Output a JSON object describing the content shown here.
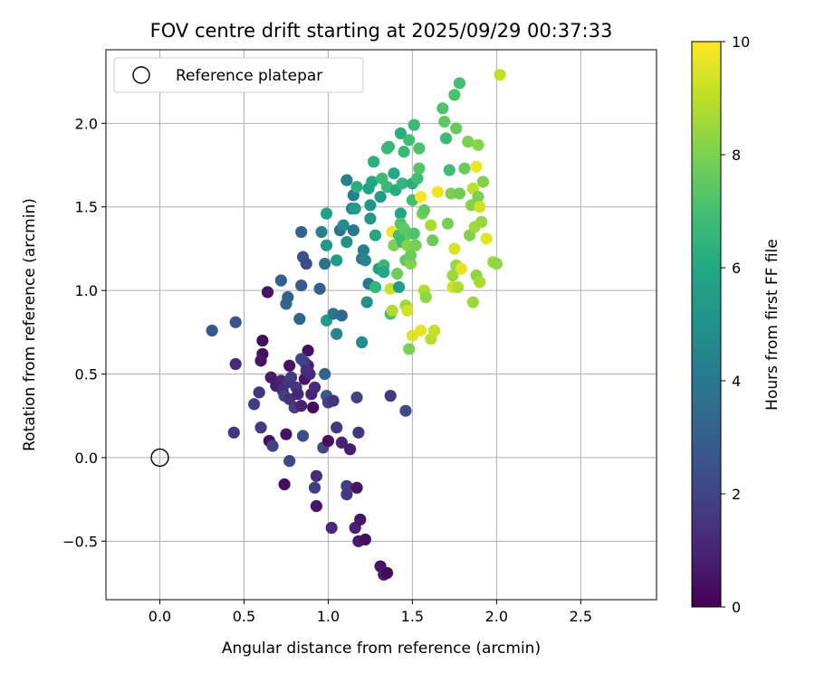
{
  "chart_data": {
    "type": "scatter",
    "title": "FOV centre drift starting at 2025/09/29 00:37:33",
    "xlabel": "Angular distance from reference (arcmin)",
    "ylabel": "Rotation from reference (arcmin)",
    "xlim": [
      -0.32,
      2.95
    ],
    "ylim": [
      -0.85,
      2.44
    ],
    "xticks": [
      "0.0",
      "0.5",
      "1.0",
      "1.5",
      "2.0",
      "2.5"
    ],
    "xtick_values": [
      0.0,
      0.5,
      1.0,
      1.5,
      2.0,
      2.5
    ],
    "yticks": [
      "−0.5",
      "0.0",
      "0.5",
      "1.0",
      "1.5",
      "2.0"
    ],
    "ytick_values": [
      -0.5,
      0.0,
      0.5,
      1.0,
      1.5,
      2.0
    ],
    "grid": true,
    "legend": {
      "placement": "top-left",
      "entries": [
        "Reference platepar"
      ]
    },
    "reference_point": {
      "x": 0.0,
      "y": 0.0,
      "label": "Reference platepar"
    },
    "colorbar": {
      "label": "Hours from first FF file",
      "range": [
        0,
        10
      ],
      "ticks": [
        "0",
        "2",
        "4",
        "6",
        "8",
        "10"
      ],
      "tick_values": [
        0,
        2,
        4,
        6,
        8,
        10
      ],
      "colormap": "viridis"
    },
    "points": [
      {
        "x": 0.64,
        "y": 0.99,
        "t": 0.5
      },
      {
        "x": 0.61,
        "y": 0.7,
        "t": 0.3
      },
      {
        "x": 0.61,
        "y": 0.62,
        "t": 0.4
      },
      {
        "x": 0.6,
        "y": 0.58,
        "t": 0.5
      },
      {
        "x": 0.45,
        "y": 0.56,
        "t": 1.2
      },
      {
        "x": 0.66,
        "y": 0.48,
        "t": 0.7
      },
      {
        "x": 0.69,
        "y": 0.43,
        "t": 0.8
      },
      {
        "x": 0.72,
        "y": 0.46,
        "t": 1.0
      },
      {
        "x": 0.73,
        "y": 0.4,
        "t": 1.3
      },
      {
        "x": 0.76,
        "y": 0.45,
        "t": 1.5
      },
      {
        "x": 0.78,
        "y": 0.48,
        "t": 1.7
      },
      {
        "x": 0.81,
        "y": 0.42,
        "t": 1.6
      },
      {
        "x": 0.74,
        "y": 0.37,
        "t": 1.9
      },
      {
        "x": 0.77,
        "y": 0.35,
        "t": 1.4
      },
      {
        "x": 0.8,
        "y": 0.3,
        "t": 1.8
      },
      {
        "x": 0.82,
        "y": 0.38,
        "t": 1.1
      },
      {
        "x": 0.84,
        "y": 0.31,
        "t": 0.9
      },
      {
        "x": 0.86,
        "y": 0.47,
        "t": 0.6
      },
      {
        "x": 0.88,
        "y": 0.55,
        "t": 0.7
      },
      {
        "x": 0.89,
        "y": 0.5,
        "t": 1.1
      },
      {
        "x": 0.88,
        "y": 0.64,
        "t": 0.4
      },
      {
        "x": 0.86,
        "y": 0.57,
        "t": 1.5
      },
      {
        "x": 0.84,
        "y": 0.59,
        "t": 2.0
      },
      {
        "x": 0.87,
        "y": 0.52,
        "t": 1.3
      },
      {
        "x": 0.9,
        "y": 0.38,
        "t": 1.0
      },
      {
        "x": 0.92,
        "y": 0.42,
        "t": 1.2
      },
      {
        "x": 0.91,
        "y": 0.3,
        "t": 0.3
      },
      {
        "x": 0.98,
        "y": 0.5,
        "t": 3.2
      },
      {
        "x": 0.99,
        "y": 0.37,
        "t": 2.8
      },
      {
        "x": 1.0,
        "y": 0.33,
        "t": 1.9
      },
      {
        "x": 1.03,
        "y": 0.34,
        "t": 1.4
      },
      {
        "x": 0.77,
        "y": 0.55,
        "t": 0.5
      },
      {
        "x": 0.56,
        "y": 0.32,
        "t": 1.8
      },
      {
        "x": 0.59,
        "y": 0.39,
        "t": 1.6
      },
      {
        "x": 0.44,
        "y": 0.15,
        "t": 1.5
      },
      {
        "x": 0.6,
        "y": 0.18,
        "t": 1.7
      },
      {
        "x": 0.65,
        "y": 0.1,
        "t": 0.4
      },
      {
        "x": 0.67,
        "y": 0.07,
        "t": 1.9
      },
      {
        "x": 0.75,
        "y": 0.14,
        "t": 0.5
      },
      {
        "x": 0.77,
        "y": -0.02,
        "t": 2.2
      },
      {
        "x": 0.74,
        "y": -0.16,
        "t": 0.3
      },
      {
        "x": 0.85,
        "y": 0.13,
        "t": 2.4
      },
      {
        "x": 0.97,
        "y": 0.06,
        "t": 2.2
      },
      {
        "x": 1.0,
        "y": 0.1,
        "t": 0.4
      },
      {
        "x": 1.05,
        "y": 0.18,
        "t": 1.6
      },
      {
        "x": 1.08,
        "y": 0.09,
        "t": 1.0
      },
      {
        "x": 1.13,
        "y": 0.05,
        "t": 0.8
      },
      {
        "x": 1.18,
        "y": 0.15,
        "t": 1.5
      },
      {
        "x": 1.17,
        "y": 0.36,
        "t": 1.9
      },
      {
        "x": 1.37,
        "y": 0.37,
        "t": 1.7
      },
      {
        "x": 1.46,
        "y": 0.28,
        "t": 2.3
      },
      {
        "x": 0.93,
        "y": -0.11,
        "t": 1.3
      },
      {
        "x": 0.92,
        "y": -0.18,
        "t": 1.8
      },
      {
        "x": 0.93,
        "y": -0.29,
        "t": 0.6
      },
      {
        "x": 1.11,
        "y": -0.17,
        "t": 1.8
      },
      {
        "x": 1.11,
        "y": -0.22,
        "t": 1.6
      },
      {
        "x": 1.17,
        "y": -0.18,
        "t": 0.5
      },
      {
        "x": 1.02,
        "y": -0.42,
        "t": 1.2
      },
      {
        "x": 1.16,
        "y": -0.42,
        "t": 0.9
      },
      {
        "x": 1.19,
        "y": -0.37,
        "t": 0.6
      },
      {
        "x": 1.18,
        "y": -0.5,
        "t": 0.7
      },
      {
        "x": 1.22,
        "y": -0.49,
        "t": 0.4
      },
      {
        "x": 1.31,
        "y": -0.65,
        "t": 0.5
      },
      {
        "x": 1.33,
        "y": -0.7,
        "t": 0.8
      },
      {
        "x": 1.35,
        "y": -0.69,
        "t": 0.3
      },
      {
        "x": 0.31,
        "y": 0.76,
        "t": 2.8
      },
      {
        "x": 0.45,
        "y": 0.81,
        "t": 2.5
      },
      {
        "x": 0.72,
        "y": 1.06,
        "t": 3.0
      },
      {
        "x": 0.75,
        "y": 0.92,
        "t": 3.3
      },
      {
        "x": 0.76,
        "y": 0.96,
        "t": 3.1
      },
      {
        "x": 0.84,
        "y": 1.03,
        "t": 2.9
      },
      {
        "x": 0.83,
        "y": 0.83,
        "t": 3.2
      },
      {
        "x": 0.85,
        "y": 1.2,
        "t": 2.6
      },
      {
        "x": 0.87,
        "y": 1.16,
        "t": 2.3
      },
      {
        "x": 0.84,
        "y": 1.35,
        "t": 3.1
      },
      {
        "x": 0.95,
        "y": 1.01,
        "t": 3.0
      },
      {
        "x": 0.98,
        "y": 1.16,
        "t": 3.8
      },
      {
        "x": 0.96,
        "y": 1.35,
        "t": 4.4
      },
      {
        "x": 0.99,
        "y": 1.27,
        "t": 5.3
      },
      {
        "x": 0.99,
        "y": 1.46,
        "t": 5.6
      },
      {
        "x": 0.99,
        "y": 0.82,
        "t": 5.5
      },
      {
        "x": 1.03,
        "y": 0.86,
        "t": 3.9
      },
      {
        "x": 1.05,
        "y": 0.74,
        "t": 4.5
      },
      {
        "x": 1.08,
        "y": 0.85,
        "t": 3.4
      },
      {
        "x": 1.05,
        "y": 1.18,
        "t": 5.4
      },
      {
        "x": 1.07,
        "y": 1.36,
        "t": 3.8
      },
      {
        "x": 1.09,
        "y": 1.39,
        "t": 4.9
      },
      {
        "x": 1.11,
        "y": 1.66,
        "t": 4.4
      },
      {
        "x": 1.11,
        "y": 1.29,
        "t": 5.0
      },
      {
        "x": 1.14,
        "y": 1.49,
        "t": 4.6
      },
      {
        "x": 1.15,
        "y": 1.57,
        "t": 4.2
      },
      {
        "x": 1.15,
        "y": 1.36,
        "t": 4.0
      },
      {
        "x": 1.16,
        "y": 1.49,
        "t": 5.5
      },
      {
        "x": 1.17,
        "y": 1.62,
        "t": 6.3
      },
      {
        "x": 1.2,
        "y": 1.19,
        "t": 3.7
      },
      {
        "x": 1.21,
        "y": 1.24,
        "t": 4.2
      },
      {
        "x": 1.2,
        "y": 0.69,
        "t": 4.8
      },
      {
        "x": 1.23,
        "y": 0.93,
        "t": 5.0
      },
      {
        "x": 1.22,
        "y": 1.18,
        "t": 4.5
      },
      {
        "x": 1.24,
        "y": 1.04,
        "t": 4.1
      },
      {
        "x": 1.24,
        "y": 1.61,
        "t": 5.7
      },
      {
        "x": 1.25,
        "y": 1.51,
        "t": 5.2
      },
      {
        "x": 1.25,
        "y": 1.43,
        "t": 5.3
      },
      {
        "x": 1.26,
        "y": 1.65,
        "t": 5.9
      },
      {
        "x": 1.27,
        "y": 1.77,
        "t": 6.3
      },
      {
        "x": 1.28,
        "y": 1.33,
        "t": 5.9
      },
      {
        "x": 1.28,
        "y": 1.02,
        "t": 6.5
      },
      {
        "x": 1.3,
        "y": 1.13,
        "t": 5.6
      },
      {
        "x": 1.31,
        "y": 1.56,
        "t": 5.4
      },
      {
        "x": 1.32,
        "y": 1.67,
        "t": 6.8
      },
      {
        "x": 1.33,
        "y": 1.15,
        "t": 6.6
      },
      {
        "x": 1.33,
        "y": 1.11,
        "t": 6.0
      },
      {
        "x": 1.35,
        "y": 1.62,
        "t": 6.7
      },
      {
        "x": 1.35,
        "y": 1.85,
        "t": 6.9
      },
      {
        "x": 1.36,
        "y": 1.86,
        "t": 6.6
      },
      {
        "x": 1.37,
        "y": 1.01,
        "t": 9.2
      },
      {
        "x": 1.37,
        "y": 0.86,
        "t": 7.0
      },
      {
        "x": 1.38,
        "y": 0.88,
        "t": 8.8
      },
      {
        "x": 1.38,
        "y": 1.35,
        "t": 9.8
      },
      {
        "x": 1.39,
        "y": 1.27,
        "t": 8.0
      },
      {
        "x": 1.39,
        "y": 1.7,
        "t": 6.0
      },
      {
        "x": 1.4,
        "y": 1.6,
        "t": 6.2
      },
      {
        "x": 1.41,
        "y": 1.1,
        "t": 7.8
      },
      {
        "x": 1.42,
        "y": 1.02,
        "t": 5.6
      },
      {
        "x": 1.42,
        "y": 1.33,
        "t": 6.9
      },
      {
        "x": 1.43,
        "y": 1.46,
        "t": 5.9
      },
      {
        "x": 1.43,
        "y": 1.4,
        "t": 7.3
      },
      {
        "x": 1.43,
        "y": 1.94,
        "t": 6.2
      },
      {
        "x": 1.44,
        "y": 1.29,
        "t": 6.8
      },
      {
        "x": 1.44,
        "y": 1.64,
        "t": 6.5
      },
      {
        "x": 1.45,
        "y": 1.83,
        "t": 6.7
      },
      {
        "x": 1.45,
        "y": 1.37,
        "t": 7.5
      },
      {
        "x": 1.46,
        "y": 1.18,
        "t": 7.6
      },
      {
        "x": 1.46,
        "y": 0.91,
        "t": 8.5
      },
      {
        "x": 1.47,
        "y": 0.88,
        "t": 9.3
      },
      {
        "x": 1.47,
        "y": 1.27,
        "t": 8.2
      },
      {
        "x": 1.48,
        "y": 1.34,
        "t": 7.4
      },
      {
        "x": 1.48,
        "y": 1.9,
        "t": 6.9
      },
      {
        "x": 1.48,
        "y": 0.65,
        "t": 8.0
      },
      {
        "x": 1.49,
        "y": 1.16,
        "t": 8.1
      },
      {
        "x": 1.49,
        "y": 1.21,
        "t": 7.7
      },
      {
        "x": 1.5,
        "y": 1.54,
        "t": 7.0
      },
      {
        "x": 1.5,
        "y": 1.64,
        "t": 6.3
      },
      {
        "x": 1.5,
        "y": 0.73,
        "t": 9.5
      },
      {
        "x": 1.51,
        "y": 1.99,
        "t": 6.7
      },
      {
        "x": 1.51,
        "y": 1.34,
        "t": 7.2
      },
      {
        "x": 1.52,
        "y": 1.27,
        "t": 7.9
      },
      {
        "x": 1.53,
        "y": 1.67,
        "t": 6.8
      },
      {
        "x": 1.54,
        "y": 1.73,
        "t": 7.3
      },
      {
        "x": 1.54,
        "y": 1.85,
        "t": 7.1
      },
      {
        "x": 1.55,
        "y": 0.76,
        "t": 9.6
      },
      {
        "x": 1.55,
        "y": 1.56,
        "t": 9.9
      },
      {
        "x": 1.56,
        "y": 1.46,
        "t": 8.0
      },
      {
        "x": 1.57,
        "y": 1.0,
        "t": 8.8
      },
      {
        "x": 1.57,
        "y": 1.48,
        "t": 7.5
      },
      {
        "x": 1.58,
        "y": 0.96,
        "t": 8.3
      },
      {
        "x": 1.61,
        "y": 1.39,
        "t": 8.7
      },
      {
        "x": 1.61,
        "y": 0.71,
        "t": 8.9
      },
      {
        "x": 1.62,
        "y": 1.3,
        "t": 7.7
      },
      {
        "x": 1.63,
        "y": 0.76,
        "t": 9.1
      },
      {
        "x": 1.65,
        "y": 1.59,
        "t": 9.8
      },
      {
        "x": 1.68,
        "y": 2.09,
        "t": 7.2
      },
      {
        "x": 1.69,
        "y": 2.01,
        "t": 7.5
      },
      {
        "x": 1.7,
        "y": 1.91,
        "t": 6.8
      },
      {
        "x": 1.71,
        "y": 1.4,
        "t": 7.9
      },
      {
        "x": 1.72,
        "y": 1.72,
        "t": 6.8
      },
      {
        "x": 1.73,
        "y": 1.58,
        "t": 8.0
      },
      {
        "x": 1.74,
        "y": 1.09,
        "t": 8.5
      },
      {
        "x": 1.74,
        "y": 1.02,
        "t": 9.3
      },
      {
        "x": 1.75,
        "y": 2.17,
        "t": 7.1
      },
      {
        "x": 1.75,
        "y": 1.25,
        "t": 9.4
      },
      {
        "x": 1.76,
        "y": 1.97,
        "t": 7.6
      },
      {
        "x": 1.76,
        "y": 1.15,
        "t": 8.4
      },
      {
        "x": 1.77,
        "y": 1.02,
        "t": 8.8
      },
      {
        "x": 1.78,
        "y": 1.58,
        "t": 7.8
      },
      {
        "x": 1.78,
        "y": 2.24,
        "t": 7.0
      },
      {
        "x": 1.79,
        "y": 1.13,
        "t": 9.6
      },
      {
        "x": 1.81,
        "y": 1.73,
        "t": 7.7
      },
      {
        "x": 1.83,
        "y": 1.89,
        "t": 8.0
      },
      {
        "x": 1.84,
        "y": 1.33,
        "t": 8.1
      },
      {
        "x": 1.85,
        "y": 1.51,
        "t": 8.2
      },
      {
        "x": 1.86,
        "y": 0.93,
        "t": 8.5
      },
      {
        "x": 1.86,
        "y": 1.61,
        "t": 9.0
      },
      {
        "x": 1.87,
        "y": 1.38,
        "t": 8.6
      },
      {
        "x": 1.88,
        "y": 1.09,
        "t": 8.3
      },
      {
        "x": 1.88,
        "y": 1.74,
        "t": 9.7
      },
      {
        "x": 1.89,
        "y": 1.56,
        "t": 8.0
      },
      {
        "x": 1.89,
        "y": 1.87,
        "t": 8.2
      },
      {
        "x": 1.9,
        "y": 1.05,
        "t": 8.7
      },
      {
        "x": 1.9,
        "y": 1.5,
        "t": 9.3
      },
      {
        "x": 1.91,
        "y": 1.41,
        "t": 8.4
      },
      {
        "x": 1.92,
        "y": 1.65,
        "t": 8.1
      },
      {
        "x": 1.94,
        "y": 1.31,
        "t": 9.6
      },
      {
        "x": 1.98,
        "y": 1.17,
        "t": 8.5
      },
      {
        "x": 2.0,
        "y": 1.16,
        "t": 8.3
      },
      {
        "x": 2.02,
        "y": 2.29,
        "t": 9.1
      }
    ]
  }
}
